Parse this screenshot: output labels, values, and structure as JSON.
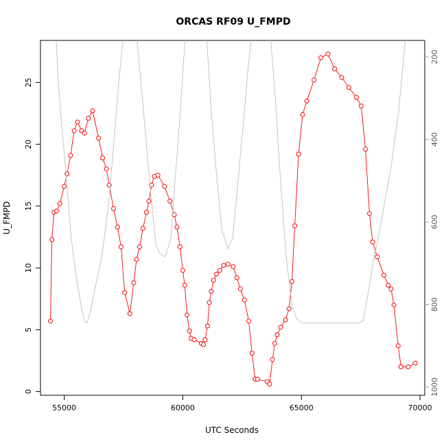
{
  "chart_data": {
    "type": "line",
    "title": "ORCAS RF09 U_FMPD",
    "xlabel": "UTC Seconds",
    "ylabel": "U_FMPD",
    "xlim": [
      54000,
      70200
    ],
    "ylim": [
      -0.3,
      28.4
    ],
    "x_ticks": [
      55000,
      60000,
      65000,
      70000
    ],
    "y_ticks": [
      0,
      5,
      10,
      15,
      20,
      25
    ],
    "y2_ticks": [
      200,
      400,
      600,
      800,
      1000
    ],
    "y2lim": [
      1020,
      160
    ],
    "grid": false,
    "series": [
      {
        "color": "#ff0000",
        "marker": "open-circle",
        "points": [
          [
            54420,
            5.7
          ],
          [
            54480,
            12.3
          ],
          [
            54570,
            14.5
          ],
          [
            54680,
            14.6
          ],
          [
            54820,
            15.2
          ],
          [
            55000,
            16.6
          ],
          [
            55120,
            17.6
          ],
          [
            55270,
            19.1
          ],
          [
            55420,
            21.1
          ],
          [
            55560,
            21.8
          ],
          [
            55730,
            21.1
          ],
          [
            55850,
            20.9
          ],
          [
            56020,
            22.1
          ],
          [
            56200,
            22.7
          ],
          [
            56450,
            20.5
          ],
          [
            56620,
            18.9
          ],
          [
            56780,
            18.0
          ],
          [
            56900,
            16.7
          ],
          [
            57080,
            14.8
          ],
          [
            57250,
            13.3
          ],
          [
            57400,
            11.7
          ],
          [
            57550,
            8.0
          ],
          [
            57770,
            6.3
          ],
          [
            57930,
            8.8
          ],
          [
            58050,
            10.7
          ],
          [
            58180,
            11.7
          ],
          [
            58320,
            13.2
          ],
          [
            58470,
            14.5
          ],
          [
            58570,
            15.4
          ],
          [
            58680,
            16.7
          ],
          [
            58800,
            17.4
          ],
          [
            58950,
            17.5
          ],
          [
            59230,
            16.6
          ],
          [
            59460,
            15.4
          ],
          [
            59640,
            14.3
          ],
          [
            59750,
            13.3
          ],
          [
            59880,
            11.7
          ],
          [
            60000,
            9.8
          ],
          [
            60080,
            8.6
          ],
          [
            60180,
            6.2
          ],
          [
            60280,
            4.9
          ],
          [
            60350,
            4.3
          ],
          [
            60480,
            4.2
          ],
          [
            60780,
            3.9
          ],
          [
            60870,
            3.8
          ],
          [
            60940,
            4.2
          ],
          [
            61040,
            5.3
          ],
          [
            61120,
            7.2
          ],
          [
            61200,
            8.1
          ],
          [
            61300,
            9.0
          ],
          [
            61420,
            9.5
          ],
          [
            61560,
            9.8
          ],
          [
            61720,
            10.2
          ],
          [
            61900,
            10.3
          ],
          [
            62120,
            10.1
          ],
          [
            62280,
            9.2
          ],
          [
            62430,
            8.3
          ],
          [
            62600,
            7.4
          ],
          [
            62780,
            5.7
          ],
          [
            62920,
            3.1
          ],
          [
            63050,
            1.0
          ],
          [
            63150,
            1.0
          ],
          [
            63560,
            0.8
          ],
          [
            63660,
            0.6
          ],
          [
            63780,
            2.6
          ],
          [
            63880,
            3.9
          ],
          [
            63980,
            4.6
          ],
          [
            64130,
            5.2
          ],
          [
            64330,
            5.8
          ],
          [
            64480,
            6.7
          ],
          [
            64600,
            8.9
          ],
          [
            64720,
            13.4
          ],
          [
            64880,
            19.2
          ],
          [
            65050,
            22.4
          ],
          [
            65230,
            23.5
          ],
          [
            65530,
            25.2
          ],
          [
            65820,
            27.0
          ],
          [
            66120,
            27.3
          ],
          [
            66400,
            26.1
          ],
          [
            66700,
            25.4
          ],
          [
            67000,
            24.6
          ],
          [
            67320,
            23.8
          ],
          [
            67520,
            23.1
          ],
          [
            67700,
            19.6
          ],
          [
            67870,
            14.4
          ],
          [
            68000,
            12.1
          ],
          [
            68200,
            10.9
          ],
          [
            68480,
            9.4
          ],
          [
            68660,
            8.6
          ],
          [
            68780,
            8.3
          ],
          [
            68900,
            7.0
          ],
          [
            69080,
            3.7
          ],
          [
            69200,
            2.0
          ],
          [
            69500,
            2.0
          ],
          [
            69800,
            2.3
          ]
        ]
      },
      {
        "color": "#bebebe",
        "axis": "right",
        "points": [
          [
            54650,
            150
          ],
          [
            54750,
            260
          ],
          [
            54900,
            370
          ],
          [
            55100,
            500
          ],
          [
            55300,
            640
          ],
          [
            55500,
            730
          ],
          [
            55700,
            800
          ],
          [
            55850,
            840
          ],
          [
            55950,
            845
          ],
          [
            56100,
            820
          ],
          [
            56300,
            760
          ],
          [
            56600,
            680
          ],
          [
            56900,
            540
          ],
          [
            57100,
            400
          ],
          [
            57300,
            260
          ],
          [
            57500,
            150
          ],
          [
            58050,
            150
          ],
          [
            58250,
            270
          ],
          [
            58450,
            400
          ],
          [
            58650,
            530
          ],
          [
            58850,
            650
          ],
          [
            59000,
            675
          ],
          [
            59250,
            685
          ],
          [
            59500,
            640
          ],
          [
            59700,
            480
          ],
          [
            59900,
            330
          ],
          [
            60100,
            150
          ],
          [
            61000,
            150
          ],
          [
            61200,
            330
          ],
          [
            61400,
            470
          ],
          [
            61650,
            620
          ],
          [
            61900,
            665
          ],
          [
            62100,
            640
          ],
          [
            62300,
            520
          ],
          [
            62550,
            360
          ],
          [
            62750,
            230
          ],
          [
            62900,
            150
          ],
          [
            63700,
            150
          ],
          [
            63900,
            300
          ],
          [
            64100,
            480
          ],
          [
            64350,
            680
          ],
          [
            64600,
            800
          ],
          [
            64800,
            835
          ],
          [
            65050,
            845
          ],
          [
            67400,
            845
          ],
          [
            67600,
            840
          ],
          [
            67850,
            760
          ],
          [
            68050,
            690
          ],
          [
            68300,
            620
          ],
          [
            68550,
            540
          ],
          [
            68800,
            460
          ],
          [
            69100,
            330
          ],
          [
            69400,
            150
          ]
        ]
      }
    ]
  }
}
